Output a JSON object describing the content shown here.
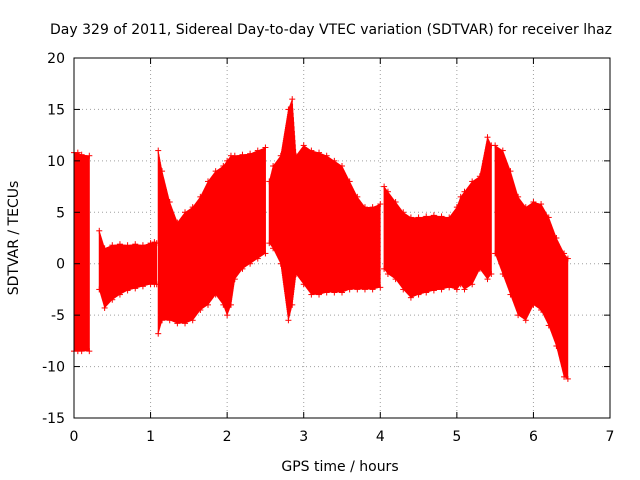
{
  "chart_data": {
    "type": "errorbar",
    "title": "Day 329 of 2011, Sidereal Day-to-day VTEC variation (SDTVAR) for receiver lhaz",
    "xlabel": "GPS time / hours",
    "ylabel": "SDTVAR / TECUs",
    "xlim": [
      0,
      7
    ],
    "ylim": [
      -15,
      20
    ],
    "xticks": [
      0,
      1,
      2,
      3,
      4,
      5,
      6,
      7
    ],
    "yticks": [
      -15,
      -10,
      -5,
      0,
      5,
      10,
      15,
      20
    ],
    "xtick_labels": [
      "0",
      "1",
      "2",
      "3",
      "4",
      "5",
      "6",
      "7"
    ],
    "ytick_labels": [
      "-15",
      "-10",
      "-5",
      "0",
      "5",
      "10",
      "15",
      "20"
    ],
    "grid": true,
    "series_color": "#ff0000",
    "segments": [
      {
        "x": [
          0.0,
          0.05,
          0.1,
          0.2
        ],
        "lower": [
          -8.5,
          -8.5,
          -8.5,
          -8.5
        ],
        "upper": [
          10.8,
          10.8,
          10.6,
          10.5
        ]
      },
      {
        "x": [
          0.33,
          0.4,
          0.5,
          0.6,
          0.7,
          0.8,
          0.9,
          1.0,
          1.05,
          1.08
        ],
        "lower": [
          -2.5,
          -4.3,
          -3.5,
          -3.0,
          -2.6,
          -2.4,
          -2.2,
          -2.0,
          -2.0,
          -2.0
        ],
        "upper": [
          3.2,
          1.5,
          1.8,
          1.9,
          1.8,
          1.9,
          1.8,
          2.0,
          2.1,
          2.0
        ]
      },
      {
        "x": [
          1.1,
          1.15,
          1.25,
          1.35,
          1.45,
          1.55,
          1.65,
          1.75,
          1.85,
          1.95,
          2.0,
          2.05,
          2.1,
          2.2,
          2.3,
          2.4,
          2.5
        ],
        "lower": [
          -6.8,
          -5.5,
          -5.5,
          -5.8,
          -5.8,
          -5.5,
          -4.5,
          -4.0,
          -3.0,
          -4.0,
          -5.0,
          -4.0,
          -1.5,
          -0.5,
          0.0,
          0.5,
          1.0
        ],
        "upper": [
          11.0,
          9.0,
          6.0,
          4.0,
          5.0,
          5.5,
          6.5,
          8.0,
          9.0,
          9.5,
          10.0,
          10.5,
          10.5,
          10.6,
          10.7,
          11.0,
          11.3
        ]
      },
      {
        "x": [
          2.55,
          2.6,
          2.7,
          2.8,
          2.85,
          2.9,
          3.0,
          3.1,
          3.2,
          3.3,
          3.4,
          3.5,
          3.6,
          3.7,
          3.8,
          3.9,
          4.0
        ],
        "lower": [
          2.0,
          1.5,
          0.0,
          -5.5,
          -4.0,
          -1.0,
          -2.0,
          -3.0,
          -3.0,
          -2.8,
          -2.8,
          -2.8,
          -2.5,
          -2.5,
          -2.5,
          -2.5,
          -2.3
        ],
        "upper": [
          8.0,
          9.5,
          10.5,
          15.0,
          16.0,
          10.5,
          11.5,
          11.0,
          10.8,
          10.5,
          10.0,
          9.5,
          8.0,
          6.5,
          5.5,
          5.5,
          5.8
        ]
      },
      {
        "x": [
          4.05,
          4.1,
          4.2,
          4.3,
          4.4,
          4.5,
          4.6,
          4.7,
          4.8,
          4.9,
          5.0,
          5.05,
          5.1,
          5.2,
          5.3,
          5.4,
          5.45
        ],
        "lower": [
          -0.5,
          -1.0,
          -1.5,
          -2.5,
          -3.3,
          -3.0,
          -2.8,
          -2.6,
          -2.5,
          -2.3,
          -2.5,
          -2.0,
          -2.5,
          -2.0,
          -0.5,
          -1.5,
          -1.0
        ],
        "upper": [
          7.5,
          7.0,
          6.0,
          5.0,
          4.5,
          4.5,
          4.6,
          4.7,
          4.6,
          4.5,
          5.5,
          6.5,
          7.0,
          8.0,
          8.5,
          12.3,
          11.5
        ]
      },
      {
        "x": [
          5.5,
          5.6,
          5.7,
          5.8,
          5.9,
          6.0,
          6.1,
          6.2,
          6.3,
          6.4,
          6.45
        ],
        "lower": [
          1.0,
          -1.0,
          -3.0,
          -5.0,
          -5.5,
          -4.0,
          -4.5,
          -6.0,
          -8.0,
          -11.0,
          -11.2
        ],
        "upper": [
          11.5,
          11.0,
          9.0,
          6.5,
          5.5,
          6.0,
          5.8,
          4.5,
          2.5,
          1.0,
          0.5
        ]
      }
    ]
  }
}
